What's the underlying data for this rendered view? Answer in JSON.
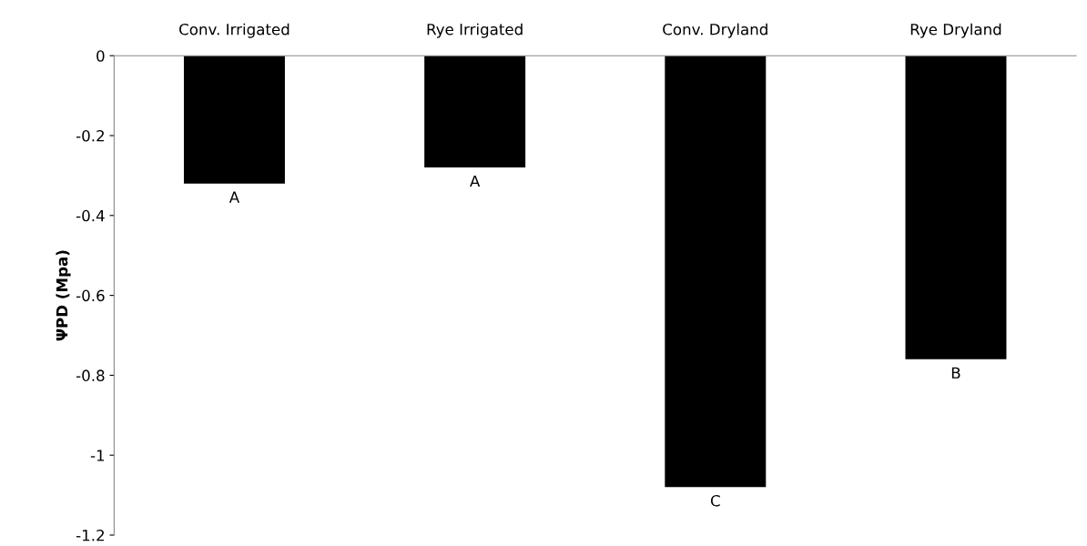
{
  "chart_data": {
    "type": "bar",
    "ylabel": "ΨPD (Mpa)",
    "categories": [
      "Conv. Irrigated",
      "Rye Irrigated",
      "Conv. Dryland",
      "Rye Dryland"
    ],
    "values": [
      -0.32,
      -0.28,
      -1.08,
      -0.76
    ],
    "color": "#000000",
    "ylim": [
      -1.2,
      0
    ],
    "yticks": [
      {
        "value": 0,
        "label": "0"
      },
      -0.2,
      -0.4,
      -0.6,
      -0.8,
      {
        "value": -1,
        "label": "-1"
      },
      -1.2
    ],
    "grid": false,
    "annotations": [
      {
        "text": "A",
        "x": "Conv. Irrigated",
        "y": -0.32
      },
      {
        "text": "A",
        "x": "Rye Irrigated",
        "y": -0.28
      },
      {
        "text": "C",
        "x": "Conv. Dryland",
        "y": -1.08
      },
      {
        "text": "B",
        "x": "Rye Dryland",
        "y": -0.76
      }
    ]
  }
}
